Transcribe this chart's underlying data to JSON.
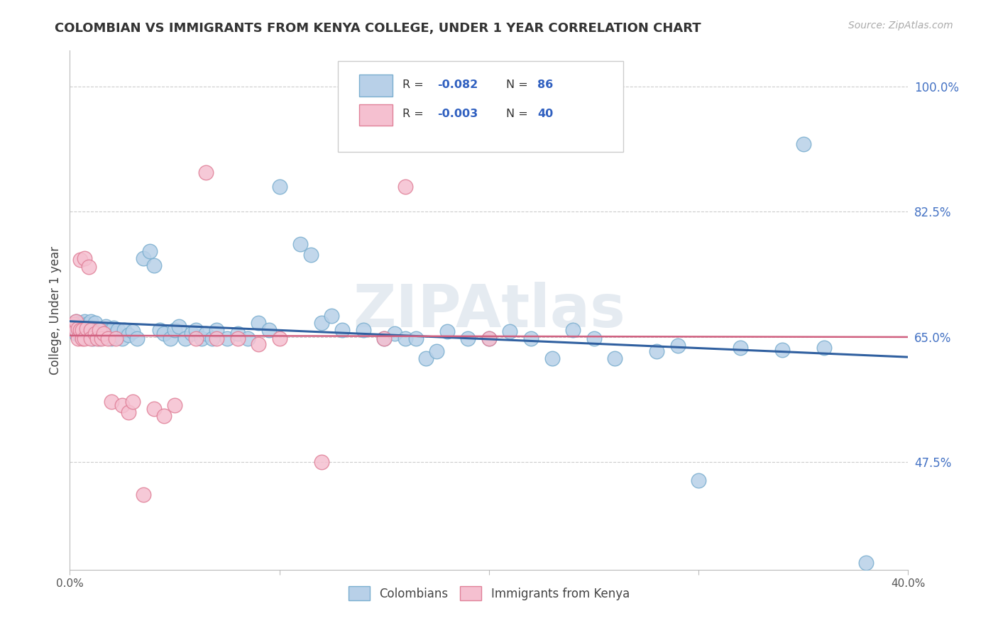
{
  "title": "COLOMBIAN VS IMMIGRANTS FROM KENYA COLLEGE, UNDER 1 YEAR CORRELATION CHART",
  "source": "Source: ZipAtlas.com",
  "ylabel": "College, Under 1 year",
  "watermark": "ZIPAtlas",
  "xlim": [
    0.0,
    0.4
  ],
  "ylim": [
    0.325,
    1.05
  ],
  "yticks": [
    0.475,
    0.65,
    0.825,
    1.0
  ],
  "ytick_labels": [
    "47.5%",
    "65.0%",
    "82.5%",
    "100.0%"
  ],
  "xticks": [
    0.0,
    0.1,
    0.2,
    0.3,
    0.4
  ],
  "xtick_labels": [
    "0.0%",
    "",
    "",
    "",
    "40.0%"
  ],
  "blue_color": "#b8d0e8",
  "blue_edge": "#7aaecf",
  "pink_color": "#f5c0d0",
  "pink_edge": "#e08098",
  "blue_line_color": "#3060a0",
  "pink_line_color": "#d06080",
  "legend_R_blue": "R = -0.082",
  "legend_N_blue": "N = 86",
  "legend_R_pink": "R = -0.003",
  "legend_N_pink": "N = 40",
  "blue_line_x0": 0.0,
  "blue_line_y0": 0.672,
  "blue_line_x1": 0.4,
  "blue_line_y1": 0.622,
  "pink_line_x0": 0.0,
  "pink_line_y0": 0.652,
  "pink_line_x1": 0.4,
  "pink_line_y1": 0.65
}
